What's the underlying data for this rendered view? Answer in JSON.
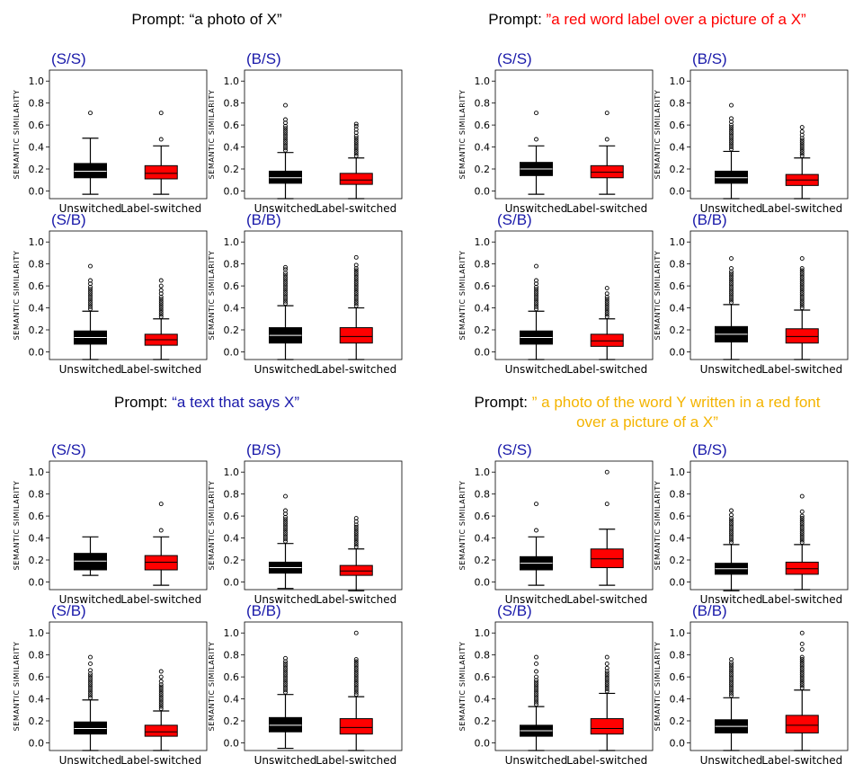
{
  "prompts": [
    {
      "prefix": "Prompt:",
      "text": "“a photo of X”",
      "color": "#000000"
    },
    {
      "prefix": "Prompt:",
      "text": "”a red word label over a picture of a X”",
      "color": "#ff0000"
    },
    {
      "prefix": "Prompt:",
      "text": "“a text that says X”",
      "color": "#1a1aaa"
    },
    {
      "prefix": "Prompt:",
      "text": "” a photo of the word Y written in a red font",
      "text2": "over a picture of a X”",
      "color": "#f4b400"
    }
  ],
  "colors": {
    "unswitched": "#000000",
    "label_switched": "#ff0000",
    "panel_title": "#1a1aaa",
    "axis": "#000000"
  },
  "chart_data": [
    {
      "type": "box",
      "group": "a photo of X",
      "title": "(S/S)",
      "ylabel": "SEMANTIC SIMILARITY",
      "ylim": [
        -0.07,
        1.1
      ],
      "yticks": [
        "0.0",
        "0.2",
        "0.4",
        "0.6",
        "0.8",
        "1.0"
      ],
      "categories": [
        "Unswitched",
        "Label-switched"
      ],
      "boxes": [
        {
          "q1": 0.12,
          "median": 0.18,
          "q3": 0.25,
          "wlo": -0.03,
          "whi": 0.48,
          "outliers": [
            0.71
          ]
        },
        {
          "q1": 0.11,
          "median": 0.16,
          "q3": 0.23,
          "wlo": -0.03,
          "whi": 0.41,
          "outliers": [
            0.47,
            0.71
          ]
        }
      ]
    },
    {
      "type": "box",
      "group": "a photo of X",
      "title": "(B/S)",
      "ylabel": "SEMANTIC SIMILARITY",
      "ylim": [
        -0.07,
        1.1
      ],
      "yticks": [
        "0.0",
        "0.2",
        "0.4",
        "0.6",
        "0.8",
        "1.0"
      ],
      "categories": [
        "Unswitched",
        "Label-switched"
      ],
      "boxes": [
        {
          "q1": 0.07,
          "median": 0.12,
          "q3": 0.18,
          "wlo": -0.07,
          "whi": 0.35,
          "outliers": [
            0.37,
            0.39,
            0.41,
            0.43,
            0.45,
            0.47,
            0.49,
            0.51,
            0.53,
            0.55,
            0.57,
            0.59,
            0.62,
            0.65,
            0.78
          ]
        },
        {
          "q1": 0.06,
          "median": 0.1,
          "q3": 0.16,
          "wlo": -0.07,
          "whi": 0.3,
          "outliers": [
            0.32,
            0.34,
            0.36,
            0.38,
            0.4,
            0.42,
            0.44,
            0.46,
            0.48,
            0.5,
            0.53,
            0.56,
            0.59,
            0.61
          ]
        }
      ]
    },
    {
      "type": "box",
      "group": "a photo of X",
      "title": "(S/B)",
      "ylabel": "SEMANTIC SIMILARITY",
      "ylim": [
        -0.07,
        1.1
      ],
      "yticks": [
        "0.0",
        "0.2",
        "0.4",
        "0.6",
        "0.8",
        "1.0"
      ],
      "categories": [
        "Unswitched",
        "Label-switched"
      ],
      "boxes": [
        {
          "q1": 0.07,
          "median": 0.13,
          "q3": 0.19,
          "wlo": -0.07,
          "whi": 0.37,
          "outliers": [
            0.39,
            0.41,
            0.43,
            0.45,
            0.47,
            0.49,
            0.51,
            0.53,
            0.55,
            0.57,
            0.59,
            0.62,
            0.65,
            0.78
          ]
        },
        {
          "q1": 0.06,
          "median": 0.11,
          "q3": 0.16,
          "wlo": -0.07,
          "whi": 0.3,
          "outliers": [
            0.32,
            0.34,
            0.36,
            0.38,
            0.4,
            0.42,
            0.44,
            0.46,
            0.48,
            0.5,
            0.53,
            0.56,
            0.6,
            0.65
          ]
        }
      ]
    },
    {
      "type": "box",
      "group": "a photo of X",
      "title": "(B/B)",
      "ylabel": "SEMANTIC SIMILARITY",
      "ylim": [
        -0.07,
        1.1
      ],
      "yticks": [
        "0.0",
        "0.2",
        "0.4",
        "0.6",
        "0.8",
        "1.0"
      ],
      "categories": [
        "Unswitched",
        "Label-switched"
      ],
      "boxes": [
        {
          "q1": 0.08,
          "median": 0.15,
          "q3": 0.22,
          "wlo": -0.07,
          "whi": 0.42,
          "outliers": [
            0.44,
            0.46,
            0.48,
            0.5,
            0.52,
            0.54,
            0.56,
            0.58,
            0.6,
            0.62,
            0.64,
            0.66,
            0.68,
            0.7,
            0.72,
            0.75,
            0.77
          ]
        },
        {
          "q1": 0.08,
          "median": 0.14,
          "q3": 0.22,
          "wlo": -0.07,
          "whi": 0.4,
          "outliers": [
            0.42,
            0.44,
            0.46,
            0.48,
            0.5,
            0.52,
            0.54,
            0.56,
            0.58,
            0.6,
            0.62,
            0.64,
            0.66,
            0.68,
            0.7,
            0.72,
            0.74,
            0.76,
            0.79,
            0.86
          ]
        }
      ]
    },
    {
      "type": "box",
      "group": "a red word label over a picture of a X",
      "title": "(S/S)",
      "ylabel": "SEMANTIC SIMILARITY",
      "ylim": [
        -0.07,
        1.1
      ],
      "yticks": [
        "0.0",
        "0.2",
        "0.4",
        "0.6",
        "0.8",
        "1.0"
      ],
      "categories": [
        "Unswitched",
        "Label-switched"
      ],
      "boxes": [
        {
          "q1": 0.14,
          "median": 0.2,
          "q3": 0.26,
          "wlo": -0.03,
          "whi": 0.41,
          "outliers": [
            0.47,
            0.71
          ]
        },
        {
          "q1": 0.12,
          "median": 0.17,
          "q3": 0.23,
          "wlo": -0.03,
          "whi": 0.41,
          "outliers": [
            0.47,
            0.71
          ]
        }
      ]
    },
    {
      "type": "box",
      "group": "a red word label over a picture of a X",
      "title": "(B/S)",
      "ylabel": "SEMANTIC SIMILARITY",
      "ylim": [
        -0.07,
        1.1
      ],
      "yticks": [
        "0.0",
        "0.2",
        "0.4",
        "0.6",
        "0.8",
        "1.0"
      ],
      "categories": [
        "Unswitched",
        "Label-switched"
      ],
      "boxes": [
        {
          "q1": 0.07,
          "median": 0.12,
          "q3": 0.18,
          "wlo": -0.07,
          "whi": 0.36,
          "outliers": [
            0.38,
            0.4,
            0.42,
            0.44,
            0.46,
            0.48,
            0.5,
            0.52,
            0.54,
            0.56,
            0.58,
            0.6,
            0.63,
            0.66,
            0.78
          ]
        },
        {
          "q1": 0.05,
          "median": 0.1,
          "q3": 0.15,
          "wlo": -0.07,
          "whi": 0.3,
          "outliers": [
            0.32,
            0.34,
            0.36,
            0.38,
            0.4,
            0.42,
            0.44,
            0.46,
            0.48,
            0.51,
            0.54,
            0.58
          ]
        }
      ]
    },
    {
      "type": "box",
      "group": "a red word label over a picture of a X",
      "title": "(S/B)",
      "ylabel": "SEMANTIC SIMILARITY",
      "ylim": [
        -0.07,
        1.1
      ],
      "yticks": [
        "0.0",
        "0.2",
        "0.4",
        "0.6",
        "0.8",
        "1.0"
      ],
      "categories": [
        "Unswitched",
        "Label-switched"
      ],
      "boxes": [
        {
          "q1": 0.07,
          "median": 0.13,
          "q3": 0.19,
          "wlo": -0.07,
          "whi": 0.37,
          "outliers": [
            0.39,
            0.41,
            0.43,
            0.45,
            0.47,
            0.49,
            0.51,
            0.53,
            0.55,
            0.57,
            0.59,
            0.62,
            0.65,
            0.78
          ]
        },
        {
          "q1": 0.05,
          "median": 0.1,
          "q3": 0.16,
          "wlo": -0.07,
          "whi": 0.3,
          "outliers": [
            0.32,
            0.34,
            0.36,
            0.38,
            0.4,
            0.42,
            0.44,
            0.46,
            0.48,
            0.5,
            0.53,
            0.58
          ]
        }
      ]
    },
    {
      "type": "box",
      "group": "a red word label over a picture of a X",
      "title": "(B/B)",
      "ylabel": "SEMANTIC SIMILARITY",
      "ylim": [
        -0.07,
        1.1
      ],
      "yticks": [
        "0.0",
        "0.2",
        "0.4",
        "0.6",
        "0.8",
        "1.0"
      ],
      "categories": [
        "Unswitched",
        "Label-switched"
      ],
      "boxes": [
        {
          "q1": 0.09,
          "median": 0.16,
          "q3": 0.23,
          "wlo": -0.07,
          "whi": 0.43,
          "outliers": [
            0.45,
            0.47,
            0.49,
            0.51,
            0.53,
            0.55,
            0.57,
            0.59,
            0.61,
            0.63,
            0.65,
            0.67,
            0.69,
            0.71,
            0.73,
            0.76,
            0.85
          ]
        },
        {
          "q1": 0.08,
          "median": 0.14,
          "q3": 0.21,
          "wlo": -0.07,
          "whi": 0.38,
          "outliers": [
            0.4,
            0.42,
            0.44,
            0.46,
            0.48,
            0.5,
            0.52,
            0.54,
            0.56,
            0.58,
            0.6,
            0.62,
            0.64,
            0.66,
            0.68,
            0.7,
            0.72,
            0.74,
            0.76,
            0.85
          ]
        }
      ]
    },
    {
      "type": "box",
      "group": "a text that says X",
      "title": "(S/S)",
      "ylabel": "SEMANTIC SIMILARITY",
      "ylim": [
        -0.07,
        1.1
      ],
      "yticks": [
        "0.0",
        "0.2",
        "0.4",
        "0.6",
        "0.8",
        "1.0"
      ],
      "categories": [
        "Unswitched",
        "Label-switched"
      ],
      "boxes": [
        {
          "q1": 0.11,
          "median": 0.19,
          "q3": 0.26,
          "wlo": 0.06,
          "whi": 0.41,
          "outliers": []
        },
        {
          "q1": 0.11,
          "median": 0.18,
          "q3": 0.24,
          "wlo": -0.03,
          "whi": 0.41,
          "outliers": [
            0.47,
            0.71
          ]
        }
      ]
    },
    {
      "type": "box",
      "group": "a text that says X",
      "title": "(B/S)",
      "ylabel": "SEMANTIC SIMILARITY",
      "ylim": [
        -0.07,
        1.1
      ],
      "yticks": [
        "0.0",
        "0.2",
        "0.4",
        "0.6",
        "0.8",
        "1.0"
      ],
      "categories": [
        "Unswitched",
        "Label-switched"
      ],
      "boxes": [
        {
          "q1": 0.08,
          "median": 0.13,
          "q3": 0.18,
          "wlo": -0.06,
          "whi": 0.35,
          "outliers": [
            0.37,
            0.39,
            0.41,
            0.43,
            0.45,
            0.47,
            0.49,
            0.51,
            0.53,
            0.55,
            0.57,
            0.59,
            0.62,
            0.65,
            0.78
          ]
        },
        {
          "q1": 0.06,
          "median": 0.1,
          "q3": 0.15,
          "wlo": -0.08,
          "whi": 0.3,
          "outliers": [
            0.32,
            0.34,
            0.36,
            0.38,
            0.4,
            0.42,
            0.44,
            0.46,
            0.48,
            0.5,
            0.52,
            0.55,
            0.58
          ]
        }
      ]
    },
    {
      "type": "box",
      "group": "a text that says X",
      "title": "(S/B)",
      "ylabel": "SEMANTIC SIMILARITY",
      "ylim": [
        -0.07,
        1.1
      ],
      "yticks": [
        "0.0",
        "0.2",
        "0.4",
        "0.6",
        "0.8",
        "1.0"
      ],
      "categories": [
        "Unswitched",
        "Label-switched"
      ],
      "boxes": [
        {
          "q1": 0.08,
          "median": 0.13,
          "q3": 0.19,
          "wlo": -0.07,
          "whi": 0.39,
          "outliers": [
            0.41,
            0.43,
            0.45,
            0.47,
            0.49,
            0.51,
            0.53,
            0.55,
            0.57,
            0.59,
            0.61,
            0.63,
            0.66,
            0.72,
            0.78
          ]
        },
        {
          "q1": 0.06,
          "median": 0.1,
          "q3": 0.16,
          "wlo": -0.07,
          "whi": 0.29,
          "outliers": [
            0.31,
            0.33,
            0.35,
            0.37,
            0.39,
            0.41,
            0.43,
            0.45,
            0.47,
            0.49,
            0.51,
            0.53,
            0.56,
            0.6,
            0.65
          ]
        }
      ]
    },
    {
      "type": "box",
      "group": "a text that says X",
      "title": "(B/B)",
      "ylabel": "SEMANTIC SIMILARITY",
      "ylim": [
        -0.07,
        1.1
      ],
      "yticks": [
        "0.0",
        "0.2",
        "0.4",
        "0.6",
        "0.8",
        "1.0"
      ],
      "categories": [
        "Unswitched",
        "Label-switched"
      ],
      "boxes": [
        {
          "q1": 0.1,
          "median": 0.16,
          "q3": 0.23,
          "wlo": -0.05,
          "whi": 0.44,
          "outliers": [
            0.46,
            0.48,
            0.5,
            0.52,
            0.54,
            0.56,
            0.58,
            0.6,
            0.62,
            0.64,
            0.66,
            0.68,
            0.7,
            0.72,
            0.74,
            0.77
          ]
        },
        {
          "q1": 0.08,
          "median": 0.14,
          "q3": 0.22,
          "wlo": -0.07,
          "whi": 0.42,
          "outliers": [
            0.44,
            0.46,
            0.48,
            0.5,
            0.52,
            0.54,
            0.56,
            0.58,
            0.6,
            0.62,
            0.64,
            0.66,
            0.68,
            0.7,
            0.72,
            0.74,
            0.76,
            1.0
          ]
        }
      ]
    },
    {
      "type": "box",
      "group": "a photo of the word Y written in a red font over a picture of a X",
      "title": "(S/S)",
      "ylabel": "SEMANTIC SIMILARITY",
      "ylim": [
        -0.07,
        1.1
      ],
      "yticks": [
        "0.0",
        "0.2",
        "0.4",
        "0.6",
        "0.8",
        "1.0"
      ],
      "categories": [
        "Unswitched",
        "Label-switched"
      ],
      "boxes": [
        {
          "q1": 0.11,
          "median": 0.17,
          "q3": 0.23,
          "wlo": -0.03,
          "whi": 0.41,
          "outliers": [
            0.47,
            0.71
          ]
        },
        {
          "q1": 0.13,
          "median": 0.21,
          "q3": 0.3,
          "wlo": -0.03,
          "whi": 0.48,
          "outliers": [
            0.71,
            1.0
          ]
        }
      ]
    },
    {
      "type": "box",
      "group": "a photo of the word Y written in a red font over a picture of a X",
      "title": "(B/S)",
      "ylabel": "SEMANTIC SIMILARITY",
      "ylim": [
        -0.07,
        1.1
      ],
      "yticks": [
        "0.0",
        "0.2",
        "0.4",
        "0.6",
        "0.8",
        "1.0"
      ],
      "categories": [
        "Unswitched",
        "Label-switched"
      ],
      "boxes": [
        {
          "q1": 0.07,
          "median": 0.12,
          "q3": 0.17,
          "wlo": -0.08,
          "whi": 0.34,
          "outliers": [
            0.36,
            0.38,
            0.4,
            0.42,
            0.44,
            0.46,
            0.48,
            0.5,
            0.52,
            0.54,
            0.56,
            0.58,
            0.61,
            0.65
          ]
        },
        {
          "q1": 0.07,
          "median": 0.12,
          "q3": 0.18,
          "wlo": -0.07,
          "whi": 0.34,
          "outliers": [
            0.36,
            0.38,
            0.4,
            0.42,
            0.44,
            0.46,
            0.48,
            0.5,
            0.52,
            0.54,
            0.56,
            0.58,
            0.6,
            0.64,
            0.78
          ]
        }
      ]
    },
    {
      "type": "box",
      "group": "a photo of the word Y written in a red font over a picture of a X",
      "title": "(S/B)",
      "ylabel": "SEMANTIC SIMILARITY",
      "ylim": [
        -0.07,
        1.1
      ],
      "yticks": [
        "0.0",
        "0.2",
        "0.4",
        "0.6",
        "0.8",
        "1.0"
      ],
      "categories": [
        "Unswitched",
        "Label-switched"
      ],
      "boxes": [
        {
          "q1": 0.06,
          "median": 0.11,
          "q3": 0.16,
          "wlo": -0.07,
          "whi": 0.33,
          "outliers": [
            0.35,
            0.37,
            0.39,
            0.41,
            0.43,
            0.45,
            0.47,
            0.49,
            0.51,
            0.53,
            0.55,
            0.57,
            0.6,
            0.65,
            0.72,
            0.78
          ]
        },
        {
          "q1": 0.08,
          "median": 0.13,
          "q3": 0.22,
          "wlo": -0.07,
          "whi": 0.45,
          "outliers": [
            0.47,
            0.49,
            0.51,
            0.53,
            0.55,
            0.57,
            0.59,
            0.61,
            0.63,
            0.65,
            0.68,
            0.72,
            0.78
          ]
        }
      ]
    },
    {
      "type": "box",
      "group": "a photo of the word Y written in a red font over a picture of a X",
      "title": "(B/B)",
      "ylabel": "SEMANTIC SIMILARITY",
      "ylim": [
        -0.07,
        1.1
      ],
      "yticks": [
        "0.0",
        "0.2",
        "0.4",
        "0.6",
        "0.8",
        "1.0"
      ],
      "categories": [
        "Unswitched",
        "Label-switched"
      ],
      "boxes": [
        {
          "q1": 0.09,
          "median": 0.15,
          "q3": 0.21,
          "wlo": -0.07,
          "whi": 0.41,
          "outliers": [
            0.43,
            0.45,
            0.47,
            0.49,
            0.51,
            0.53,
            0.55,
            0.57,
            0.59,
            0.61,
            0.63,
            0.65,
            0.67,
            0.69,
            0.71,
            0.73,
            0.76
          ]
        },
        {
          "q1": 0.09,
          "median": 0.16,
          "q3": 0.25,
          "wlo": -0.07,
          "whi": 0.48,
          "outliers": [
            0.5,
            0.52,
            0.54,
            0.56,
            0.58,
            0.6,
            0.62,
            0.64,
            0.66,
            0.68,
            0.7,
            0.72,
            0.74,
            0.76,
            0.78,
            0.85,
            0.9,
            1.0
          ]
        }
      ]
    }
  ]
}
